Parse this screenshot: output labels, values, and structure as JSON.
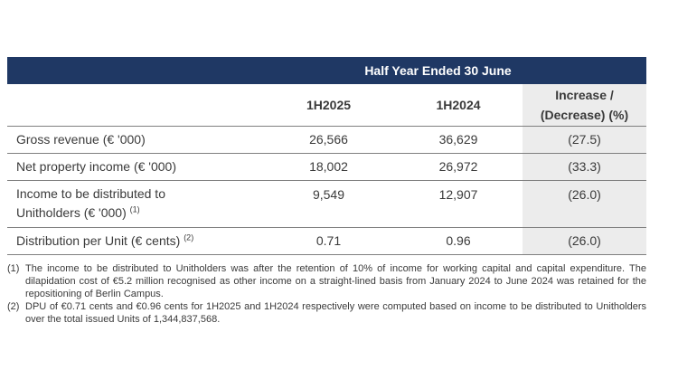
{
  "table": {
    "band_title": "Half Year Ended 30 June",
    "columns": {
      "col1": "1H2025",
      "col2": "1H2024",
      "col3_line1": "Increase /",
      "col3_line2": "(Decrease) (%)"
    },
    "rows": [
      {
        "label": "Gross revenue (€ '000)",
        "v1": "26,566",
        "v2": "36,629",
        "v3": "(27.5)"
      },
      {
        "label": "Net property income (€ '000)",
        "v1": "18,002",
        "v2": "26,972",
        "v3": "(33.3)"
      },
      {
        "label_line1": "Income to be distributed to",
        "label_line2": "Unitholders (€ '000)",
        "sup": "(1)",
        "v1": "9,549",
        "v2": "12,907",
        "v3": "(26.0)"
      },
      {
        "label": "Distribution per Unit (€ cents)",
        "sup": "(2)",
        "v1": "0.71",
        "v2": "0.96",
        "v3": "(26.0)"
      }
    ]
  },
  "notes": [
    {
      "num": "(1)",
      "text": "The income to be distributed to Unitholders was after the retention of 10% of income for working capital and capital expenditure. The dilapidation cost of €5.2 million recognised as other income on a straight-lined basis from January 2024 to June 2024 was retained for the repositioning of Berlin Campus."
    },
    {
      "num": "(2)",
      "text": "DPU of €0.71 cents and €0.96 cents for 1H2025 and 1H2024 respectively were computed based on income to be distributed to Unitholders over the total issued Units of 1,344,837,568."
    }
  ]
}
